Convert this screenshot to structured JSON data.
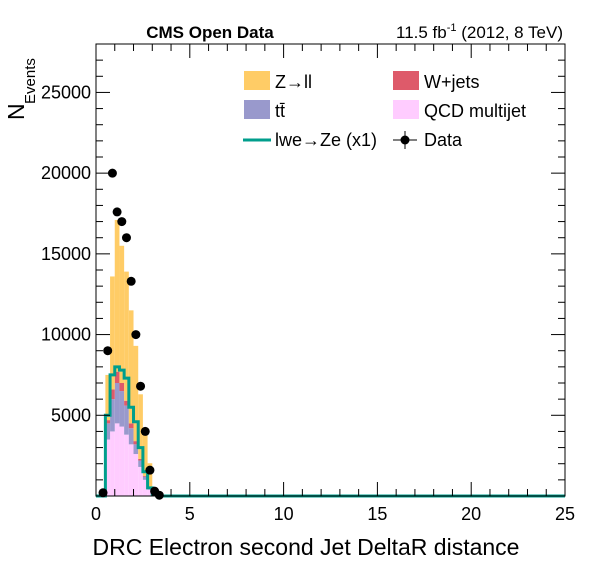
{
  "header": {
    "left": "CMS Open Data",
    "right_pre": "11.5 fb",
    "right_sup": "-1",
    "right_post": " (2012, 8 TeV)"
  },
  "chart_data": {
    "type": "bar",
    "stacked": true,
    "xlabel": "DRC Electron second Jet DeltaR distance",
    "ylabel_main": "N",
    "ylabel_sub": "Events",
    "xlim": [
      0,
      25
    ],
    "ylim": [
      0,
      28000
    ],
    "xticks": [
      0,
      5,
      10,
      15,
      20,
      25
    ],
    "yticks": [
      5000,
      10000,
      15000,
      20000,
      25000
    ],
    "bin_width": 0.25,
    "bin_low_edges": [
      0.5,
      0.75,
      1.0,
      1.25,
      1.5,
      1.75,
      2.0,
      2.25,
      2.5,
      2.75,
      3.0,
      3.25
    ],
    "series": [
      {
        "name": "QCD multijet",
        "color": "#ffccff",
        "values": [
          3500,
          4000,
          4500,
          4300,
          3800,
          3200,
          2600,
          1800,
          1000,
          400,
          100,
          20
        ]
      },
      {
        "name": "tt̄",
        "color": "#9999cc",
        "values": [
          1000,
          2000,
          2500,
          2200,
          1800,
          1000,
          600,
          400,
          200,
          100,
          30,
          10
        ]
      },
      {
        "name": "W+jets",
        "color": "#de5a6a",
        "values": [
          200,
          600,
          700,
          500,
          300,
          300,
          200,
          100,
          50,
          30,
          10,
          0
        ]
      },
      {
        "name": "Z→ll",
        "color": "#ffcc66",
        "values": [
          2800,
          7000,
          9400,
          8500,
          8000,
          7000,
          5900,
          4000,
          2600,
          1500,
          400,
          150
        ]
      }
    ],
    "signal": {
      "name": "lwe→Ze (x1)",
      "color": "#009e8c",
      "values": [
        5000,
        7500,
        8000,
        7800,
        7300,
        5500,
        4600,
        3000,
        1500,
        500,
        100,
        20
      ]
    },
    "data": {
      "name": "Data",
      "x": [
        0.375,
        0.625,
        0.875,
        1.125,
        1.375,
        1.625,
        1.875,
        2.125,
        2.375,
        2.625,
        2.875,
        3.125,
        3.375
      ],
      "y": [
        200,
        9000,
        20000,
        17600,
        17000,
        16000,
        13300,
        10000,
        6800,
        4000,
        1600,
        300,
        50
      ]
    }
  }
}
